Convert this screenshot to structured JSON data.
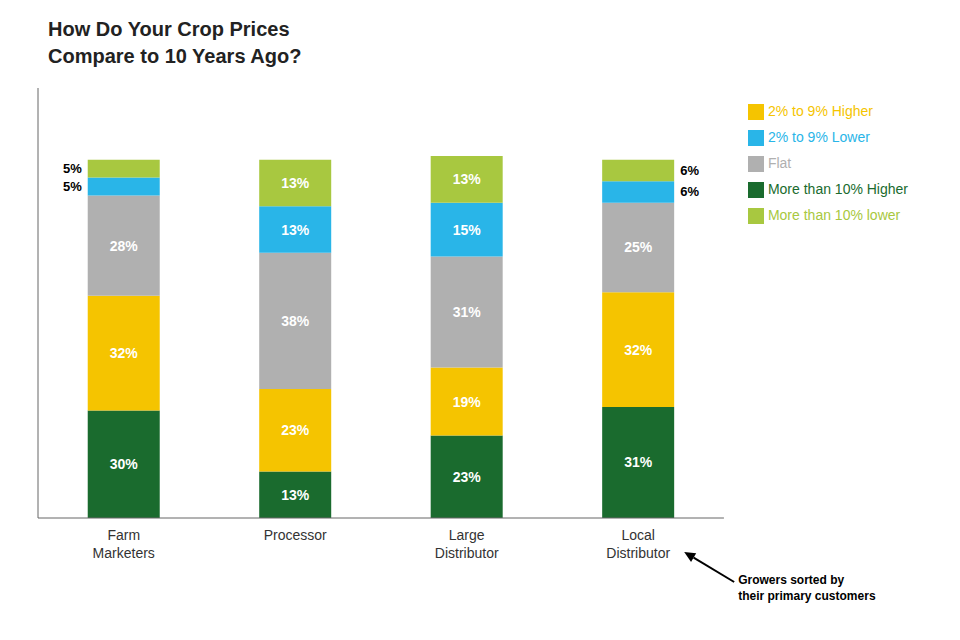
{
  "chart_data": {
    "type": "bar",
    "title": "How Do Your Crop Prices\nCompare to 10 Years Ago?",
    "categories": [
      "Farm\nMarketers",
      "Processor",
      "Large\nDistributor",
      "Local\nDistributor"
    ],
    "series": [
      {
        "name": "More than 10% Higher",
        "color": "#1a6b2e",
        "values": [
          30,
          13,
          23,
          31
        ],
        "value_labels": [
          "30%",
          "13%",
          "23%",
          "31%"
        ]
      },
      {
        "name": "2% to 9% Higher",
        "color": "#f5c400",
        "values": [
          32,
          23,
          19,
          32
        ],
        "value_labels": [
          "32%",
          "23%",
          "19%",
          "32%"
        ]
      },
      {
        "name": "Flat",
        "color": "#b0b0b0",
        "values": [
          28,
          38,
          31,
          25
        ],
        "value_labels": [
          "28%",
          "38%",
          "31%",
          "25%"
        ]
      },
      {
        "name": "2% to 9% Lower",
        "color": "#29b5e8",
        "values": [
          5,
          13,
          15,
          6
        ],
        "value_labels": [
          "5%",
          "13%",
          "15%",
          "6%"
        ]
      },
      {
        "name": "More than 10% lower",
        "color": "#a8c840",
        "values": [
          5,
          13,
          13,
          6
        ],
        "value_labels": [
          "5%",
          "13%",
          "13%",
          "6%"
        ]
      }
    ],
    "stacked": true,
    "data_labels": true,
    "ylim": [
      0,
      120
    ],
    "yticks": [],
    "tick_labels": "x",
    "grid": false,
    "legend": "right",
    "annotations": [
      "Growers sorted by\ntheir primary customers"
    ]
  }
}
